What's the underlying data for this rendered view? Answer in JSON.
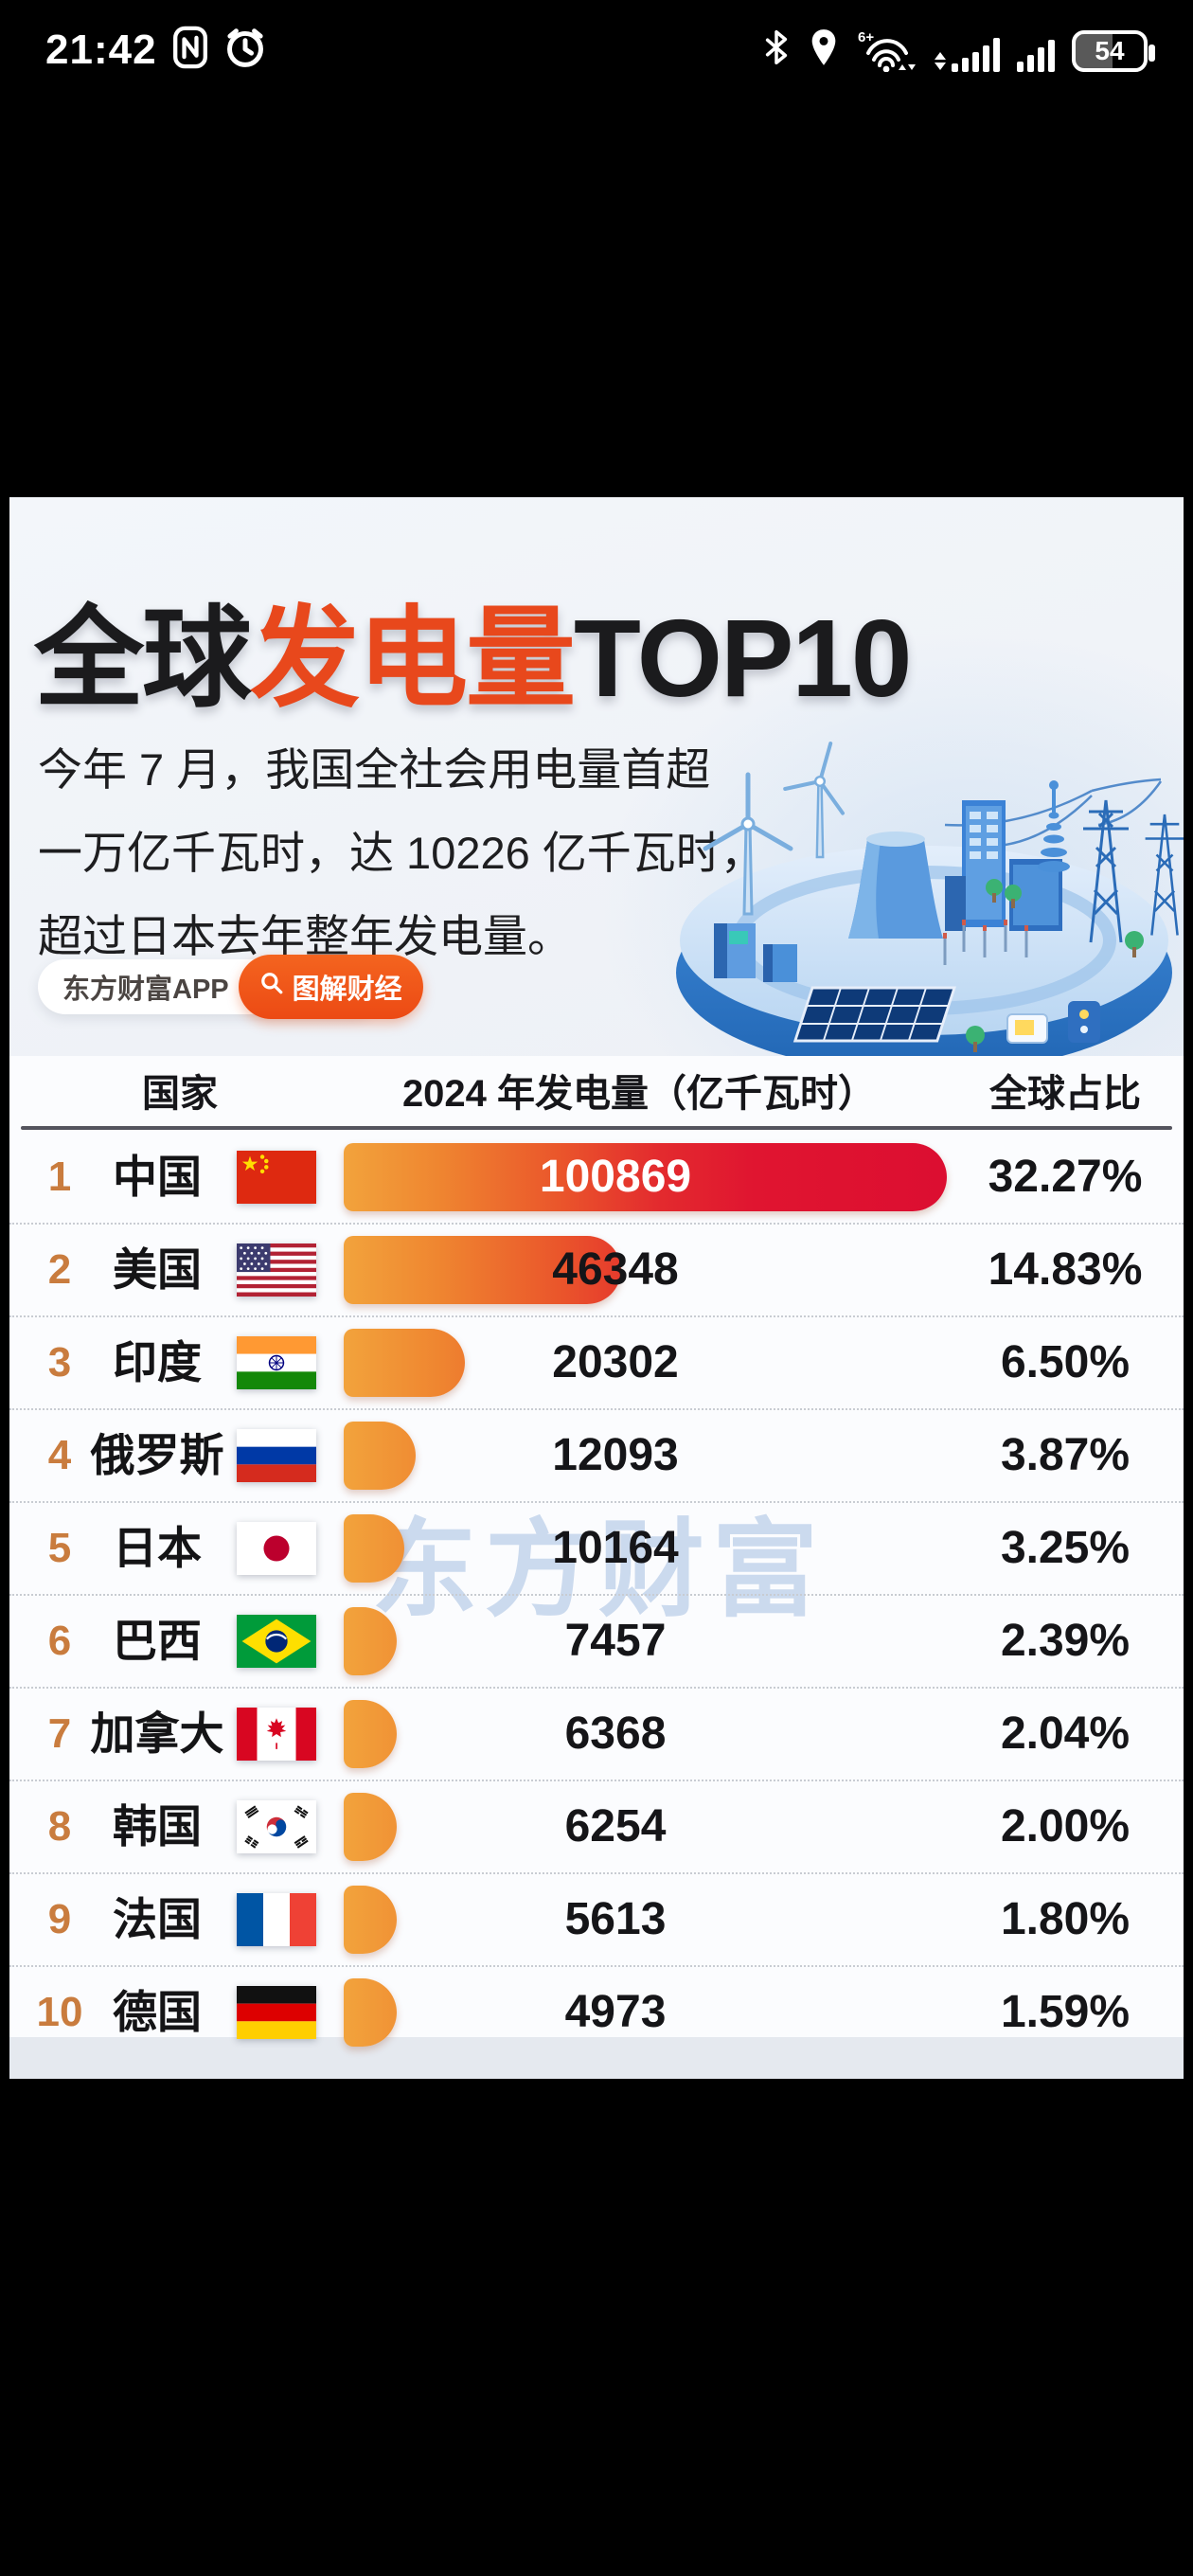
{
  "status_bar": {
    "time": "21:42",
    "wifi_label": "6+",
    "battery_percent": "54",
    "icons": [
      "nfc-icon",
      "alarm-icon",
      "bluetooth-icon",
      "location-icon",
      "wifi-icon",
      "signal-icon",
      "signal-icon",
      "battery-icon"
    ]
  },
  "poster": {
    "title": {
      "part1": "全球",
      "part2": "发电量",
      "part3": "TOP10"
    },
    "subtitle_lines": [
      "今年 7 月，我国全社会用电量首超",
      "一万亿千瓦时，达 10226 亿千瓦时，",
      "超过日本去年整年发电量。"
    ],
    "badges": {
      "app": "东方财富APP",
      "column": "图解财经"
    },
    "watermark": "东方财富",
    "colors": {
      "accent_orange": "#e8481c",
      "bar_gradient_start": "#f2a33c",
      "bar_gradient_end": "#dc0e31",
      "rank_orange": "#c97c3e",
      "badge_orange": "#ef5019"
    }
  },
  "table": {
    "headers": [
      "国家",
      "2024 年发电量（亿千瓦时）",
      "全球占比"
    ],
    "rows": [
      {
        "rank": "1",
        "country": "中国",
        "flag": "cn",
        "value": 100869,
        "share": "32.27%"
      },
      {
        "rank": "2",
        "country": "美国",
        "flag": "us",
        "value": 46348,
        "share": "14.83%"
      },
      {
        "rank": "3",
        "country": "印度",
        "flag": "in",
        "value": 20302,
        "share": "6.50%"
      },
      {
        "rank": "4",
        "country": "俄罗斯",
        "flag": "ru",
        "value": 12093,
        "share": "3.87%"
      },
      {
        "rank": "5",
        "country": "日本",
        "flag": "jp",
        "value": 10164,
        "share": "3.25%"
      },
      {
        "rank": "6",
        "country": "巴西",
        "flag": "br",
        "value": 7457,
        "share": "2.39%"
      },
      {
        "rank": "7",
        "country": "加拿大",
        "flag": "ca",
        "value": 6368,
        "share": "2.04%"
      },
      {
        "rank": "8",
        "country": "韩国",
        "flag": "kr",
        "value": 6254,
        "share": "2.00%"
      },
      {
        "rank": "9",
        "country": "法国",
        "flag": "fr",
        "value": 5613,
        "share": "1.80%"
      },
      {
        "rank": "10",
        "country": "德国",
        "flag": "de",
        "value": 4973,
        "share": "1.59%"
      }
    ]
  },
  "chart_data": {
    "type": "bar",
    "orientation": "horizontal",
    "title": "全球发电量TOP10",
    "categories": [
      "中国",
      "美国",
      "印度",
      "俄罗斯",
      "日本",
      "巴西",
      "加拿大",
      "韩国",
      "法国",
      "德国"
    ],
    "series": [
      {
        "name": "2024 年发电量（亿千瓦时）",
        "values": [
          100869,
          46348,
          20302,
          12093,
          10164,
          7457,
          6368,
          6254,
          5613,
          4973
        ]
      },
      {
        "name": "全球占比(%)",
        "values": [
          32.27,
          14.83,
          6.5,
          3.87,
          3.25,
          2.39,
          2.04,
          2.0,
          1.8,
          1.59
        ]
      }
    ],
    "xlabel": "2024 年发电量（亿千瓦时）",
    "ylabel": "国家",
    "xlim": [
      0,
      100869
    ],
    "grid": false,
    "legend_position": "none"
  }
}
